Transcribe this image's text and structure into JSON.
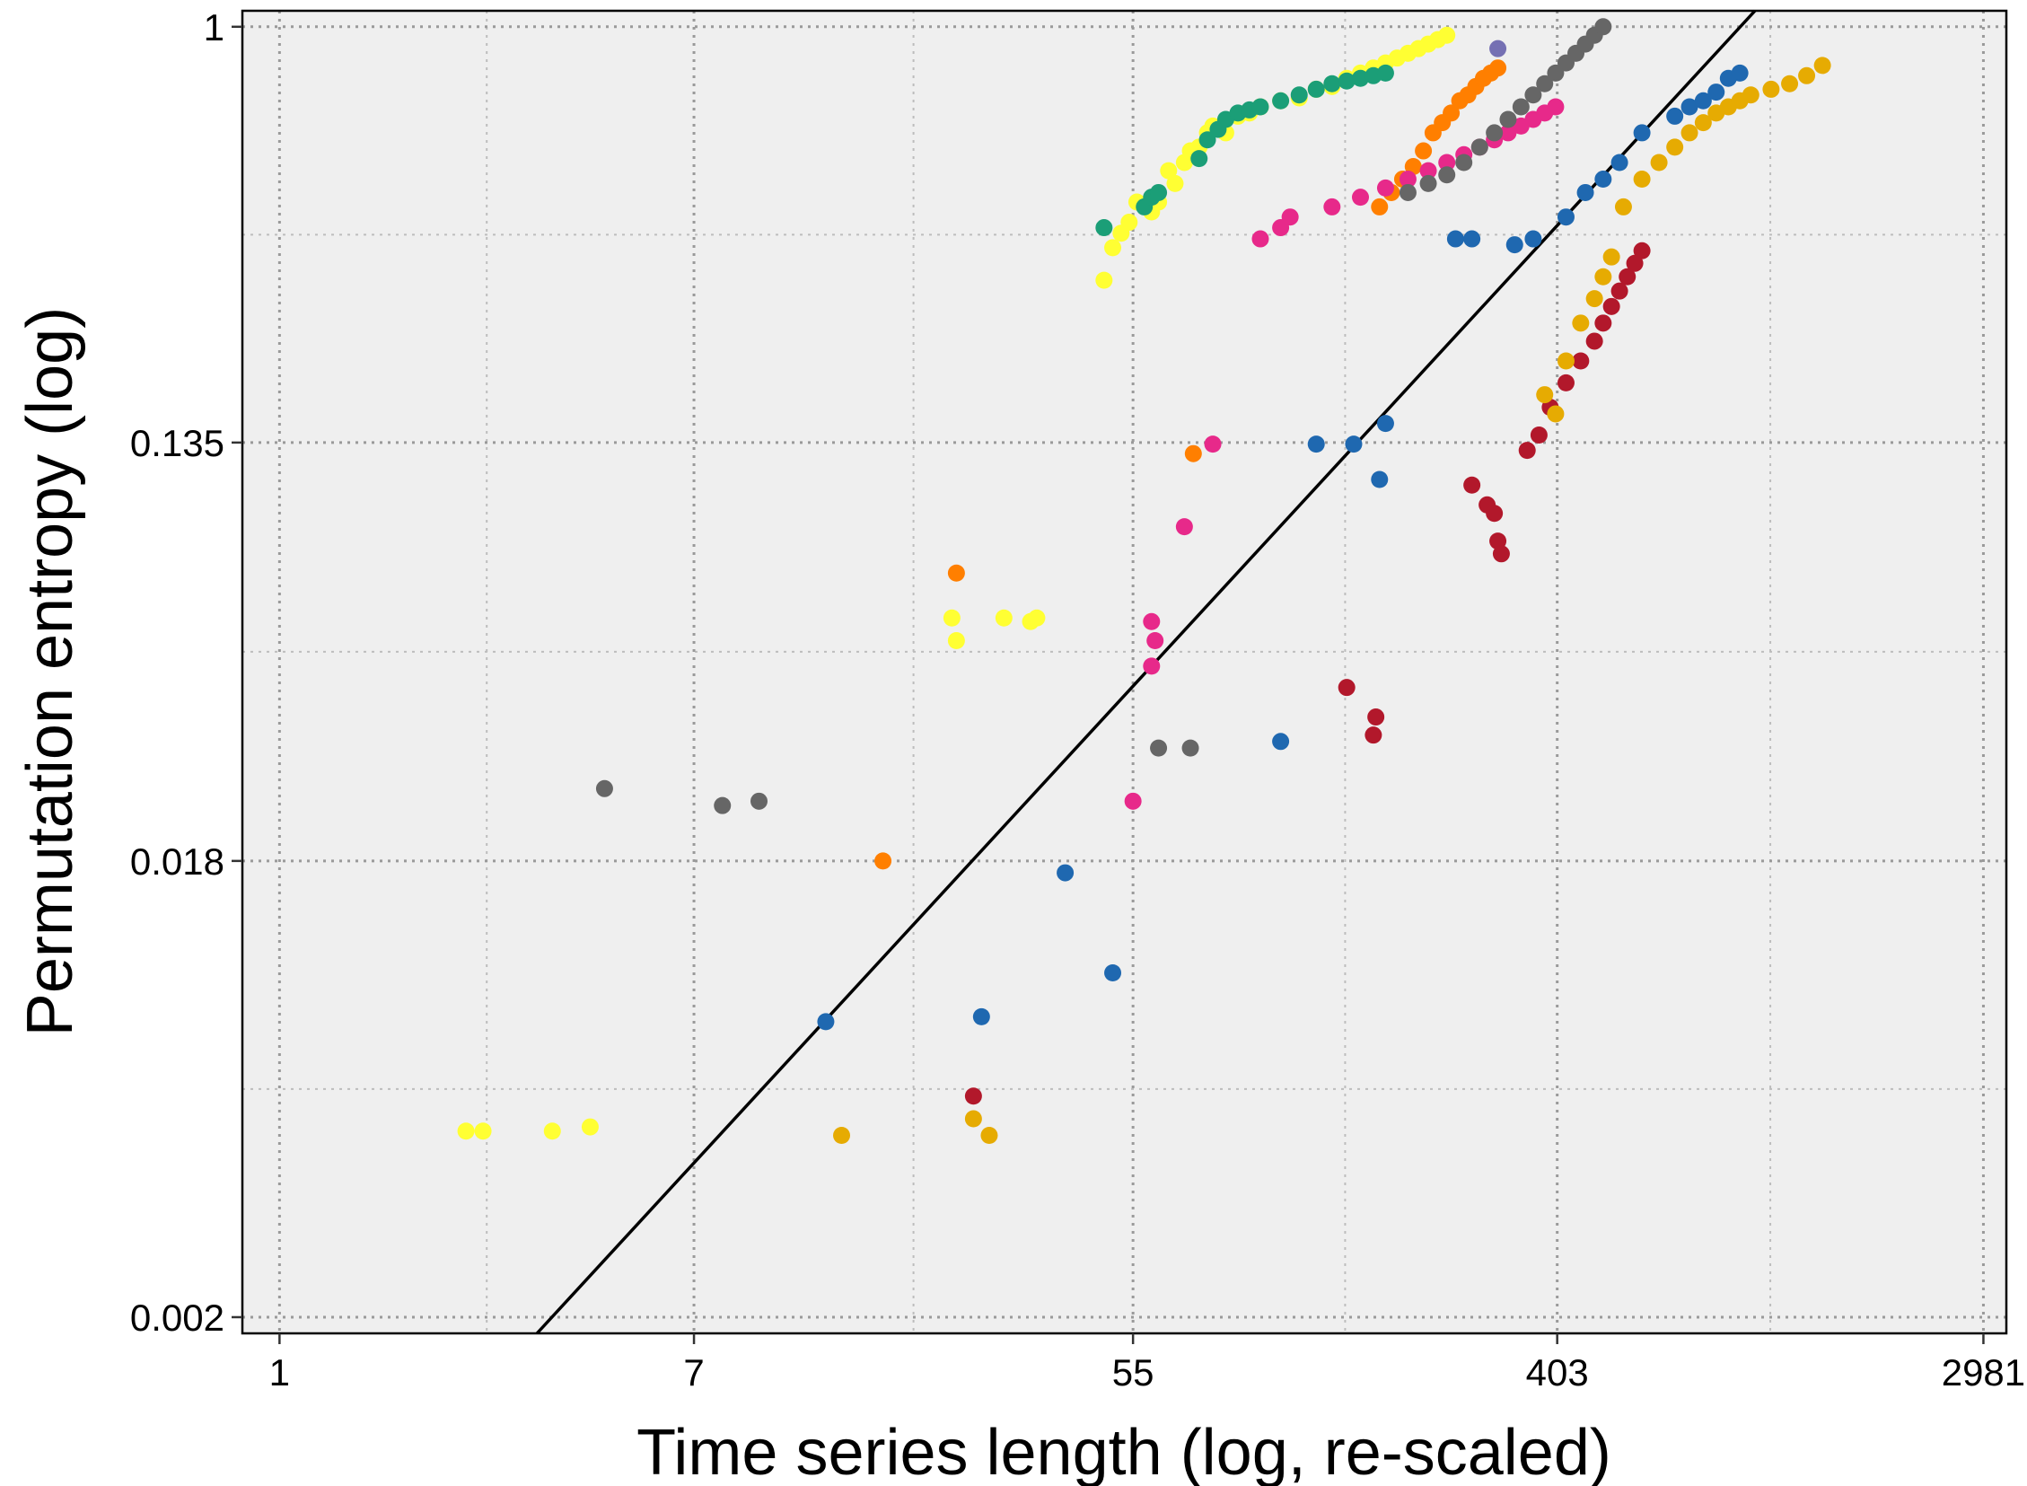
{
  "chart_data": {
    "type": "scatter",
    "title": "",
    "xlabel": "Time series length (log, re-scaled)",
    "ylabel": "Permutation entropy (log)",
    "x_scale": "log",
    "y_scale": "log",
    "xlim": [
      0.84,
      3320
    ],
    "ylim": [
      0.00185,
      1.08
    ],
    "x_ticks": [
      1,
      7,
      55,
      403,
      2981
    ],
    "x_tick_labels": [
      "1",
      "7",
      "55",
      "403",
      "2981"
    ],
    "y_ticks": [
      0.002,
      0.018,
      0.135,
      1
    ],
    "y_tick_labels": [
      "0.002",
      "0.018",
      "0.135",
      "1"
    ],
    "grid": true,
    "legend": "none",
    "background": "#efefef",
    "fit_line": {
      "points": [
        [
          3.35,
          0.00185
        ],
        [
          1020,
          1.08
        ]
      ],
      "color": "#000000"
    },
    "series": [
      {
        "color": "#ffff33",
        "points": [
          [
            2.4,
            0.0049
          ],
          [
            2.6,
            0.0049
          ],
          [
            3.6,
            0.0049
          ],
          [
            4.3,
            0.005
          ],
          [
            23.5,
            0.058
          ],
          [
            24,
            0.052
          ],
          [
            30,
            0.058
          ],
          [
            34,
            0.057
          ],
          [
            35,
            0.058
          ],
          [
            48,
            0.295
          ],
          [
            50,
            0.345
          ],
          [
            52,
            0.37
          ],
          [
            54,
            0.39
          ],
          [
            56,
            0.43
          ],
          [
            60,
            0.41
          ],
          [
            62,
            0.43
          ],
          [
            65,
            0.5
          ],
          [
            67,
            0.47
          ],
          [
            70,
            0.52
          ],
          [
            72,
            0.55
          ],
          [
            75,
            0.56
          ],
          [
            78,
            0.6
          ],
          [
            80,
            0.62
          ],
          [
            85,
            0.6
          ],
          [
            90,
            0.65
          ],
          [
            95,
            0.66
          ],
          [
            100,
            0.68
          ],
          [
            110,
            0.7
          ],
          [
            120,
            0.71
          ],
          [
            130,
            0.74
          ],
          [
            140,
            0.75
          ],
          [
            150,
            0.78
          ],
          [
            160,
            0.8
          ],
          [
            170,
            0.82
          ],
          [
            180,
            0.84
          ],
          [
            190,
            0.86
          ],
          [
            200,
            0.88
          ],
          [
            210,
            0.9
          ],
          [
            220,
            0.92
          ],
          [
            230,
            0.94
          ],
          [
            240,
            0.96
          ]
        ]
      },
      {
        "color": "#1b9e77",
        "points": [
          [
            48,
            0.38
          ],
          [
            58,
            0.42
          ],
          [
            60,
            0.44
          ],
          [
            62,
            0.45
          ],
          [
            75,
            0.53
          ],
          [
            78,
            0.58
          ],
          [
            82,
            0.61
          ],
          [
            85,
            0.64
          ],
          [
            90,
            0.66
          ],
          [
            95,
            0.67
          ],
          [
            100,
            0.68
          ],
          [
            110,
            0.7
          ],
          [
            120,
            0.72
          ],
          [
            130,
            0.74
          ],
          [
            140,
            0.76
          ],
          [
            150,
            0.77
          ],
          [
            160,
            0.78
          ],
          [
            170,
            0.79
          ],
          [
            180,
            0.8
          ]
        ]
      },
      {
        "color": "#ff7f00",
        "points": [
          [
            17,
            0.018
          ],
          [
            24,
            0.072
          ],
          [
            73,
            0.128
          ],
          [
            175,
            0.42
          ],
          [
            185,
            0.45
          ],
          [
            195,
            0.48
          ],
          [
            205,
            0.51
          ],
          [
            215,
            0.55
          ],
          [
            225,
            0.6
          ],
          [
            235,
            0.63
          ],
          [
            245,
            0.66
          ],
          [
            255,
            0.7
          ],
          [
            265,
            0.72
          ],
          [
            275,
            0.75
          ],
          [
            285,
            0.78
          ],
          [
            295,
            0.8
          ],
          [
            305,
            0.82
          ]
        ]
      },
      {
        "color": "#e7298a",
        "points": [
          [
            55,
            0.024
          ],
          [
            60,
            0.046
          ],
          [
            61,
            0.052
          ],
          [
            60,
            0.057
          ],
          [
            70,
            0.09
          ],
          [
            80,
            0.134
          ],
          [
            100,
            0.36
          ],
          [
            110,
            0.38
          ],
          [
            115,
            0.4
          ],
          [
            140,
            0.42
          ],
          [
            160,
            0.44
          ],
          [
            180,
            0.46
          ],
          [
            200,
            0.48
          ],
          [
            220,
            0.5
          ],
          [
            240,
            0.52
          ],
          [
            260,
            0.54
          ],
          [
            280,
            0.56
          ],
          [
            300,
            0.58
          ],
          [
            320,
            0.6
          ],
          [
            340,
            0.62
          ],
          [
            360,
            0.64
          ],
          [
            380,
            0.66
          ],
          [
            400,
            0.68
          ]
        ]
      },
      {
        "color": "#666666",
        "points": [
          [
            4.6,
            0.0255
          ],
          [
            8,
            0.0235
          ],
          [
            9.5,
            0.024
          ],
          [
            62,
            0.031
          ],
          [
            72,
            0.031
          ],
          [
            200,
            0.45
          ],
          [
            220,
            0.47
          ],
          [
            240,
            0.49
          ],
          [
            260,
            0.52
          ],
          [
            280,
            0.56
          ],
          [
            300,
            0.6
          ],
          [
            320,
            0.64
          ],
          [
            340,
            0.68
          ],
          [
            360,
            0.72
          ],
          [
            380,
            0.76
          ],
          [
            400,
            0.8
          ],
          [
            420,
            0.84
          ],
          [
            440,
            0.88
          ],
          [
            460,
            0.92
          ],
          [
            480,
            0.96
          ],
          [
            500,
            1.0
          ]
        ]
      },
      {
        "color": "#7570b3",
        "points": [
          [
            305,
            0.9
          ]
        ]
      },
      {
        "color": "#1f68b0",
        "points": [
          [
            13,
            0.0083
          ],
          [
            27,
            0.0085
          ],
          [
            40,
            0.017
          ],
          [
            50,
            0.0105
          ],
          [
            110,
            0.032
          ],
          [
            130,
            0.134
          ],
          [
            155,
            0.134
          ],
          [
            175,
            0.113
          ],
          [
            180,
            0.148
          ],
          [
            250,
            0.36
          ],
          [
            270,
            0.36
          ],
          [
            330,
            0.35
          ],
          [
            360,
            0.36
          ],
          [
            420,
            0.4
          ],
          [
            460,
            0.45
          ],
          [
            500,
            0.48
          ],
          [
            540,
            0.52
          ],
          [
            600,
            0.6
          ],
          [
            700,
            0.65
          ],
          [
            750,
            0.68
          ],
          [
            800,
            0.7
          ],
          [
            850,
            0.73
          ],
          [
            900,
            0.78
          ],
          [
            950,
            0.8
          ]
        ]
      },
      {
        "color": "#b2182b",
        "points": [
          [
            26,
            0.0058
          ],
          [
            150,
            0.0415
          ],
          [
            170,
            0.033
          ],
          [
            172,
            0.036
          ],
          [
            270,
            0.11
          ],
          [
            290,
            0.1
          ],
          [
            300,
            0.096
          ],
          [
            305,
            0.084
          ],
          [
            310,
            0.079
          ],
          [
            350,
            0.13
          ],
          [
            370,
            0.14
          ],
          [
            390,
            0.16
          ],
          [
            420,
            0.18
          ],
          [
            450,
            0.2
          ],
          [
            480,
            0.22
          ],
          [
            500,
            0.24
          ],
          [
            520,
            0.26
          ],
          [
            540,
            0.28
          ],
          [
            560,
            0.3
          ],
          [
            580,
            0.32
          ],
          [
            600,
            0.34
          ]
        ]
      },
      {
        "color": "#e6ab02",
        "points": [
          [
            14,
            0.0048
          ],
          [
            26,
            0.0052
          ],
          [
            28,
            0.0048
          ],
          [
            380,
            0.17
          ],
          [
            400,
            0.155
          ],
          [
            420,
            0.2
          ],
          [
            450,
            0.24
          ],
          [
            480,
            0.27
          ],
          [
            500,
            0.3
          ],
          [
            520,
            0.33
          ],
          [
            550,
            0.42
          ],
          [
            600,
            0.48
          ],
          [
            650,
            0.52
          ],
          [
            700,
            0.56
          ],
          [
            750,
            0.6
          ],
          [
            800,
            0.63
          ],
          [
            850,
            0.66
          ],
          [
            900,
            0.68
          ],
          [
            950,
            0.7
          ],
          [
            1000,
            0.72
          ],
          [
            1100,
            0.74
          ],
          [
            1200,
            0.76
          ],
          [
            1300,
            0.79
          ],
          [
            1400,
            0.83
          ]
        ]
      }
    ]
  }
}
